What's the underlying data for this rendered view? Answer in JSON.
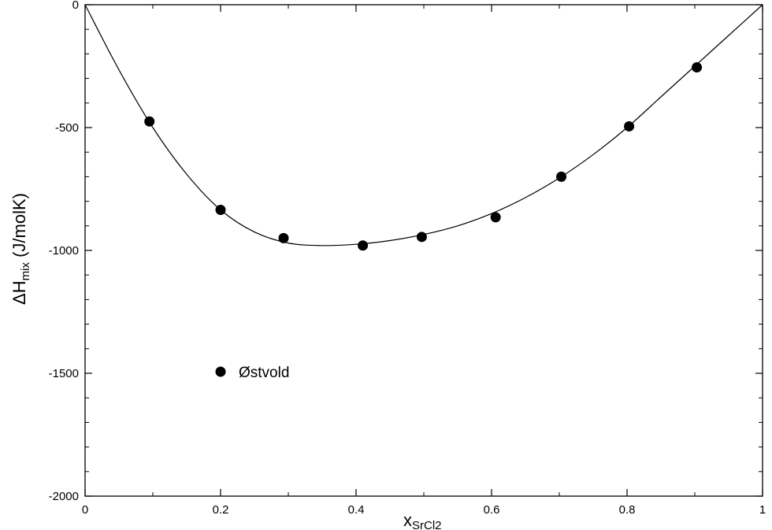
{
  "chart_data": {
    "type": "scatter",
    "xlabel": "x",
    "xlabel_subscript": "SrCl2",
    "ylabel": "ΔH",
    "ylabel_subscript": "mix",
    "ylabel_unit": " (J/molK)",
    "xlim": [
      0,
      1
    ],
    "ylim": [
      -2000,
      0
    ],
    "x_ticks": [
      0,
      0.2,
      0.4,
      0.6,
      0.8,
      1
    ],
    "x_tick_labels": [
      "0",
      "0.2",
      "0.4",
      "0.6",
      "0.8",
      "1"
    ],
    "y_ticks": [
      0,
      -500,
      -1000,
      -1500,
      -2000
    ],
    "y_tick_labels": [
      "0",
      "-500",
      "-1000",
      "-1500",
      "-2000"
    ],
    "grid": false,
    "legend_position": "lower-left",
    "series": [
      {
        "name": "Østvold",
        "marker": "filled-circle",
        "color": "#000000",
        "x": [
          0.095,
          0.2,
          0.293,
          0.41,
          0.497,
          0.606,
          0.703,
          0.803,
          0.903
        ],
        "y": [
          -475,
          -835,
          -950,
          -980,
          -945,
          -865,
          -700,
          -495,
          -255
        ]
      },
      {
        "type": "line",
        "color": "#000000",
        "x": [
          0,
          0.05,
          0.1,
          0.15,
          0.2,
          0.25,
          0.3,
          0.35,
          0.4,
          0.45,
          0.5,
          0.55,
          0.6,
          0.65,
          0.7,
          0.75,
          0.8,
          0.85,
          0.9,
          0.95,
          1
        ],
        "y": [
          0,
          -265,
          -500,
          -690,
          -835,
          -925,
          -970,
          -980,
          -975,
          -960,
          -935,
          -900,
          -850,
          -785,
          -705,
          -610,
          -500,
          -375,
          -250,
          -125,
          0
        ]
      }
    ]
  }
}
